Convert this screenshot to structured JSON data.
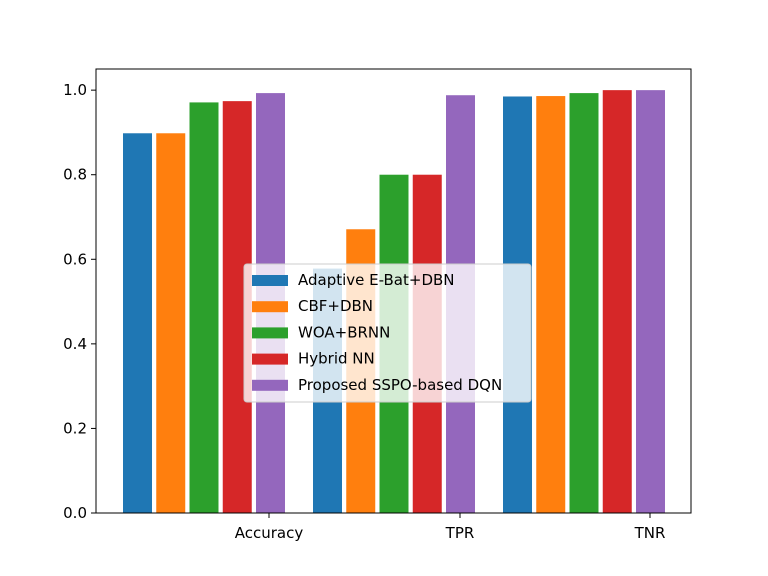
{
  "chart_data": {
    "type": "bar",
    "categories": [
      "Accuracy",
      "TPR",
      "TNR"
    ],
    "series": [
      {
        "name": "Adaptive E-Bat+DBN",
        "color": "#1f77b4",
        "values": [
          0.898,
          0.578,
          0.985
        ]
      },
      {
        "name": "CBF+DBN",
        "color": "#ff7f0e",
        "values": [
          0.898,
          0.671,
          0.986
        ]
      },
      {
        "name": "WOA+BRNN",
        "color": "#2ca02c",
        "values": [
          0.971,
          0.8,
          0.993
        ]
      },
      {
        "name": "Hybrid NN",
        "color": "#d62728",
        "values": [
          0.974,
          0.8,
          1.0
        ]
      },
      {
        "name": "Proposed SSPO-based DQN",
        "color": "#9467bd",
        "values": [
          0.993,
          0.988,
          1.0
        ]
      }
    ],
    "title": "",
    "xlabel": "",
    "ylabel": "",
    "ylim": [
      0,
      1.05
    ],
    "yticks": [
      0.0,
      0.2,
      0.4,
      0.6,
      0.8,
      1.0
    ],
    "ytick_labels": [
      "0.0",
      "0.2",
      "0.4",
      "0.6",
      "0.8",
      "1.0"
    ],
    "grid": false,
    "legend_position": "center"
  }
}
